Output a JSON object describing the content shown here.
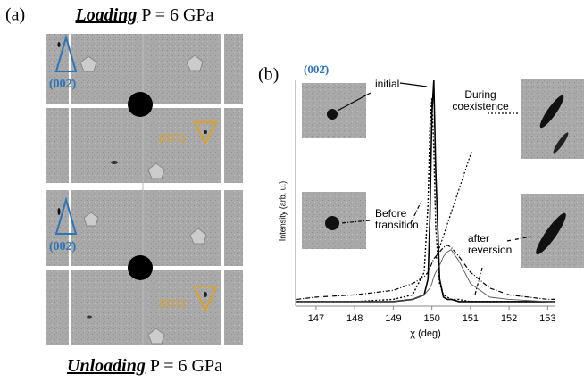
{
  "panel_a": {
    "label": "(a)",
    "top_title": {
      "emph": "Loading",
      "rest": "P = 6 GPa"
    },
    "bottom_title": {
      "emph": "Unloading",
      "rest": "P = 6 GPa"
    },
    "reflections": [
      "(002̄)",
      "(01̄1)",
      "(002̄)",
      "(01̄1)"
    ]
  },
  "panel_b": {
    "label": "(b)",
    "reflection": "(002̄)"
  },
  "chart_data": {
    "type": "line",
    "xlabel": "χ (deg)",
    "ylabel": "Intensity (arb. u.)",
    "x": [
      146.5,
      147,
      148,
      149,
      149.5,
      149.8,
      149.9,
      149.95,
      150,
      150.05,
      150.1,
      150.2,
      150.3,
      150.4,
      150.5,
      150.7,
      151,
      151.5,
      152,
      153,
      153.2
    ],
    "xlim": [
      146.47,
      153.2
    ],
    "xticks": [
      147,
      148,
      149,
      150,
      151,
      152,
      153
    ],
    "ylim": [
      0,
      1
    ],
    "series": [
      {
        "name": "initial",
        "color": "#000000",
        "style": "solid",
        "values": [
          0.02,
          0.02,
          0.02,
          0.02,
          0.03,
          0.05,
          0.12,
          0.4,
          0.85,
          1.0,
          0.6,
          0.12,
          0.04,
          0.03,
          0.03,
          0.02,
          0.02,
          0.02,
          0.02,
          0.02,
          0.02
        ]
      },
      {
        "name": "Before transition",
        "color": "#000000",
        "style": "dotted",
        "values": [
          0.02,
          0.02,
          0.02,
          0.03,
          0.05,
          0.15,
          0.45,
          0.8,
          0.92,
          0.7,
          0.35,
          0.1,
          0.05,
          0.04,
          0.03,
          0.03,
          0.02,
          0.02,
          0.02,
          0.02,
          0.02
        ]
      },
      {
        "name": "During coexistence",
        "color": "#000000",
        "style": "dashdot",
        "values": [
          0.03,
          0.04,
          0.05,
          0.07,
          0.1,
          0.13,
          0.15,
          0.17,
          0.19,
          0.21,
          0.22,
          0.24,
          0.26,
          0.27,
          0.26,
          0.22,
          0.15,
          0.08,
          0.05,
          0.03,
          0.03
        ]
      },
      {
        "name": "after reversion",
        "color": "#555555",
        "style": "thin",
        "values": [
          0.02,
          0.02,
          0.02,
          0.02,
          0.03,
          0.05,
          0.07,
          0.08,
          0.1,
          0.13,
          0.15,
          0.18,
          0.22,
          0.24,
          0.25,
          0.2,
          0.1,
          0.04,
          0.03,
          0.02,
          0.02
        ]
      }
    ]
  }
}
